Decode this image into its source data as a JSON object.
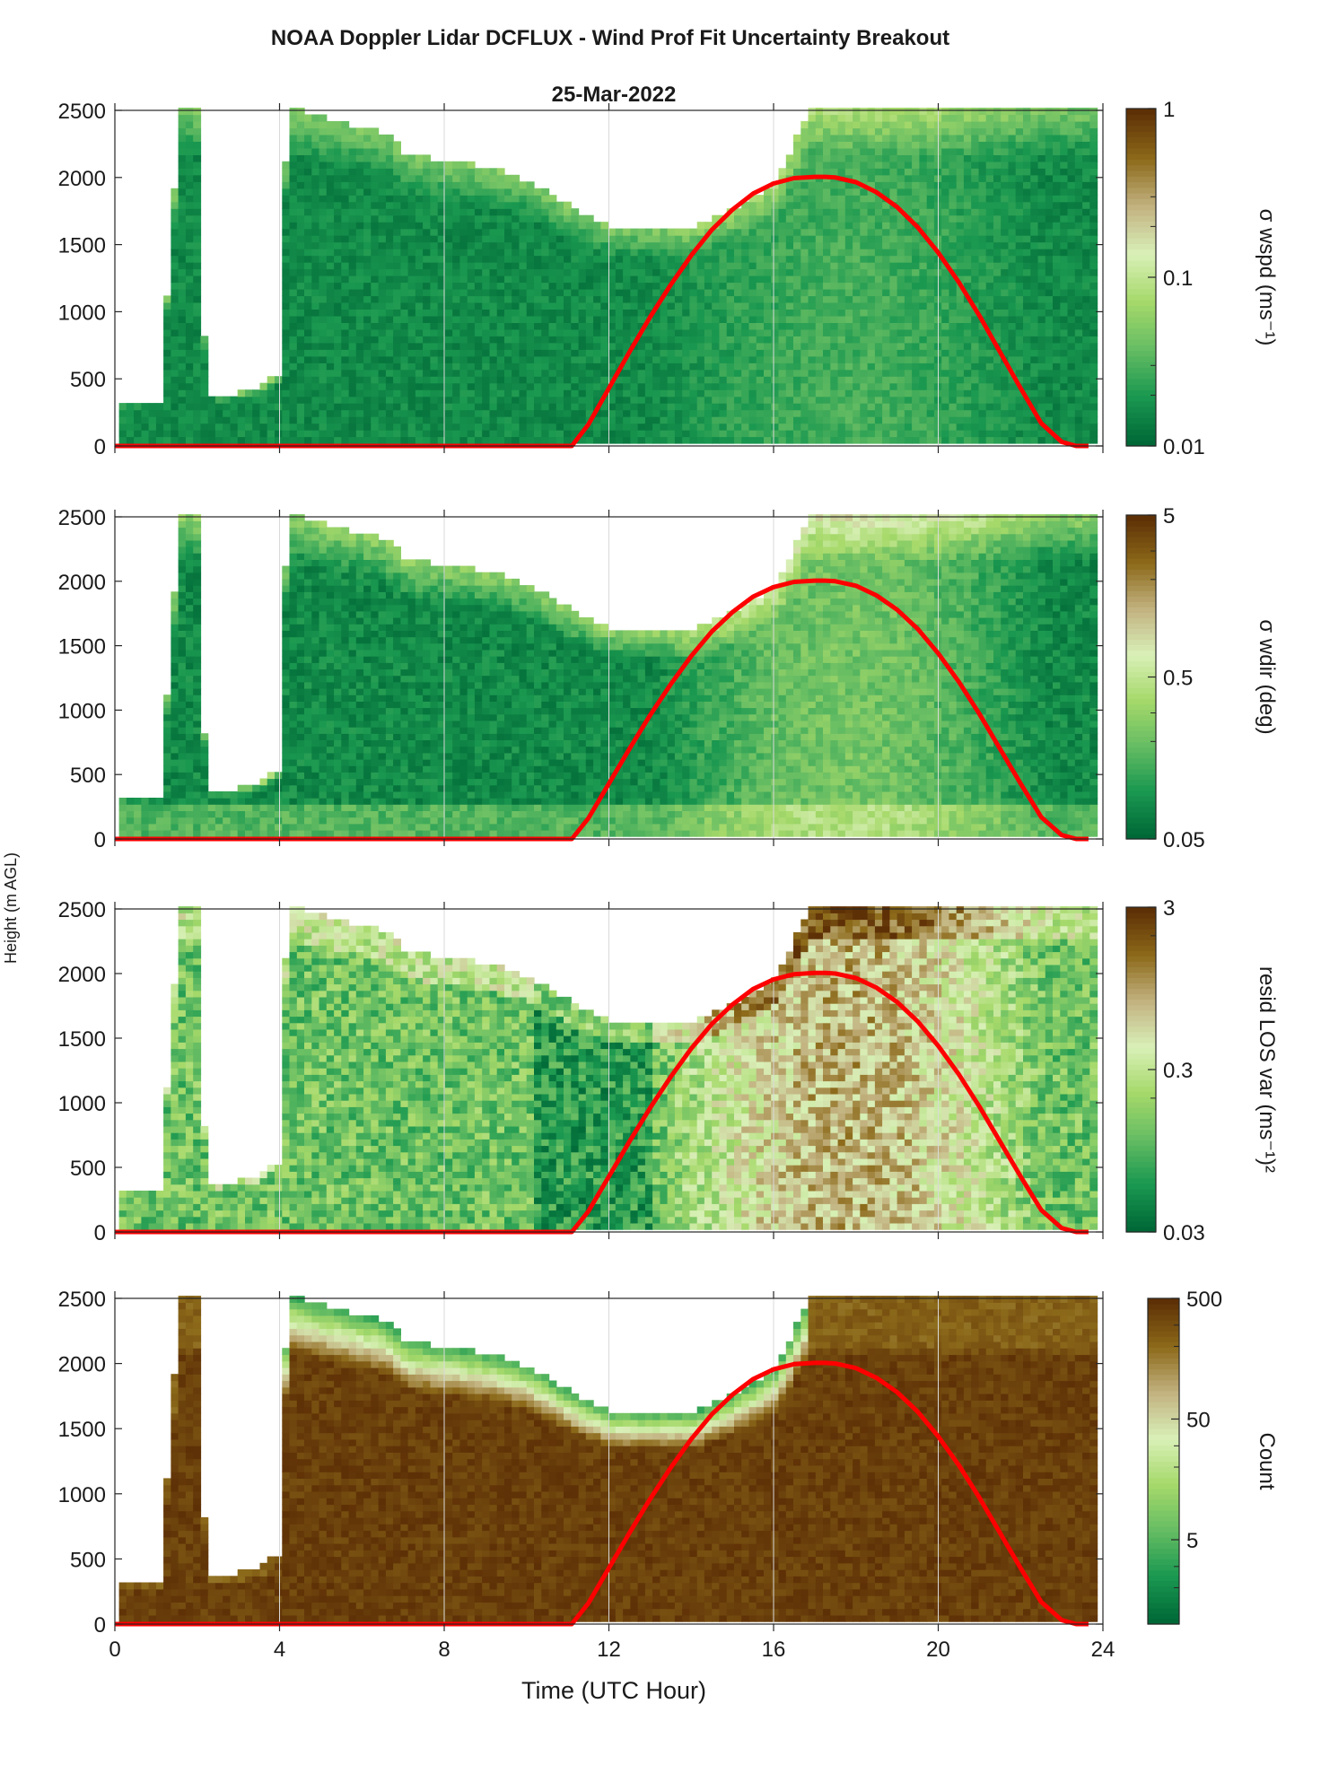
{
  "figure": {
    "title": "NOAA Doppler Lidar DCFLUX - Wind Prof Fit Uncertainty Breakout",
    "subtitle": "25-Mar-2022",
    "xlabel": "Time (UTC Hour)",
    "ylabel": "Height (m AGL)"
  },
  "chart_data": [
    {
      "type": "heatmap",
      "panel": "sigma-wspd",
      "colorbar_label": "σ wspd (ms⁻¹)",
      "colorbar_scale": "log",
      "colorbar_range": [
        0.01,
        1
      ],
      "colorbar_ticks": [
        "1",
        "0.1",
        "0.01"
      ],
      "x_ticks": [
        "0",
        "4",
        "8",
        "12",
        "16",
        "20",
        "24"
      ],
      "y_ticks": [
        "0",
        "500",
        "1000",
        "1500",
        "2000",
        "2500"
      ],
      "xlim": [
        0,
        24
      ],
      "ylim": [
        0,
        2500
      ],
      "colormap": [
        "#006837",
        "#1a9850",
        "#66bd63",
        "#a6d96a",
        "#d9f0b8",
        "#c2b280",
        "#8c6a1a",
        "#5e3006"
      ],
      "overlay": {
        "name": "",
        "color": "#ff0000",
        "type": "line"
      }
    },
    {
      "type": "heatmap",
      "panel": "sigma-wdir",
      "colorbar_label": "σ wdir (deg)",
      "colorbar_scale": "log",
      "colorbar_range": [
        0.05,
        5
      ],
      "colorbar_ticks": [
        "5",
        "0.5",
        "0.05"
      ],
      "x_ticks": [
        "0",
        "4",
        "8",
        "12",
        "16",
        "20",
        "24"
      ],
      "y_ticks": [
        "0",
        "500",
        "1000",
        "1500",
        "2000",
        "2500"
      ],
      "xlim": [
        0,
        24
      ],
      "ylim": [
        0,
        2500
      ]
    },
    {
      "type": "heatmap",
      "panel": "resid-los-var",
      "colorbar_label": "resid LOS var (ms⁻¹)²",
      "colorbar_scale": "log",
      "colorbar_range": [
        0.03,
        3
      ],
      "colorbar_ticks": [
        "3",
        "0.3",
        "0.03"
      ],
      "x_ticks": [
        "0",
        "4",
        "8",
        "12",
        "16",
        "20",
        "24"
      ],
      "y_ticks": [
        "0",
        "500",
        "1000",
        "1500",
        "2000",
        "2500"
      ],
      "xlim": [
        0,
        24
      ],
      "ylim": [
        0,
        2500
      ]
    },
    {
      "type": "heatmap",
      "panel": "count",
      "colorbar_label": "Count",
      "colorbar_scale": "log",
      "colorbar_range": [
        1,
        500
      ],
      "colorbar_ticks": [
        "500",
        "50",
        "5"
      ],
      "x_ticks": [
        "0",
        "4",
        "8",
        "12",
        "16",
        "20",
        "24"
      ],
      "y_ticks": [
        "0",
        "500",
        "1000",
        "1500",
        "2000",
        "2500"
      ],
      "xlim": [
        0,
        24
      ],
      "ylim": [
        0,
        2500
      ]
    }
  ],
  "sun_curve": {
    "x": [
      0,
      11.1,
      11.5,
      12.0,
      12.5,
      13.0,
      13.5,
      14.0,
      14.5,
      15.0,
      15.5,
      16.0,
      16.5,
      17.0,
      17.25,
      17.5,
      18.0,
      18.5,
      19.0,
      19.5,
      20.0,
      20.5,
      21.0,
      21.5,
      22.0,
      22.5,
      23.0,
      23.35,
      23.65
    ],
    "y": [
      0,
      0,
      160,
      430,
      700,
      960,
      1200,
      1420,
      1610,
      1760,
      1880,
      1955,
      1995,
      2005,
      2005,
      2000,
      1965,
      1890,
      1780,
      1630,
      1440,
      1220,
      970,
      700,
      430,
      170,
      30,
      0,
      0
    ]
  }
}
